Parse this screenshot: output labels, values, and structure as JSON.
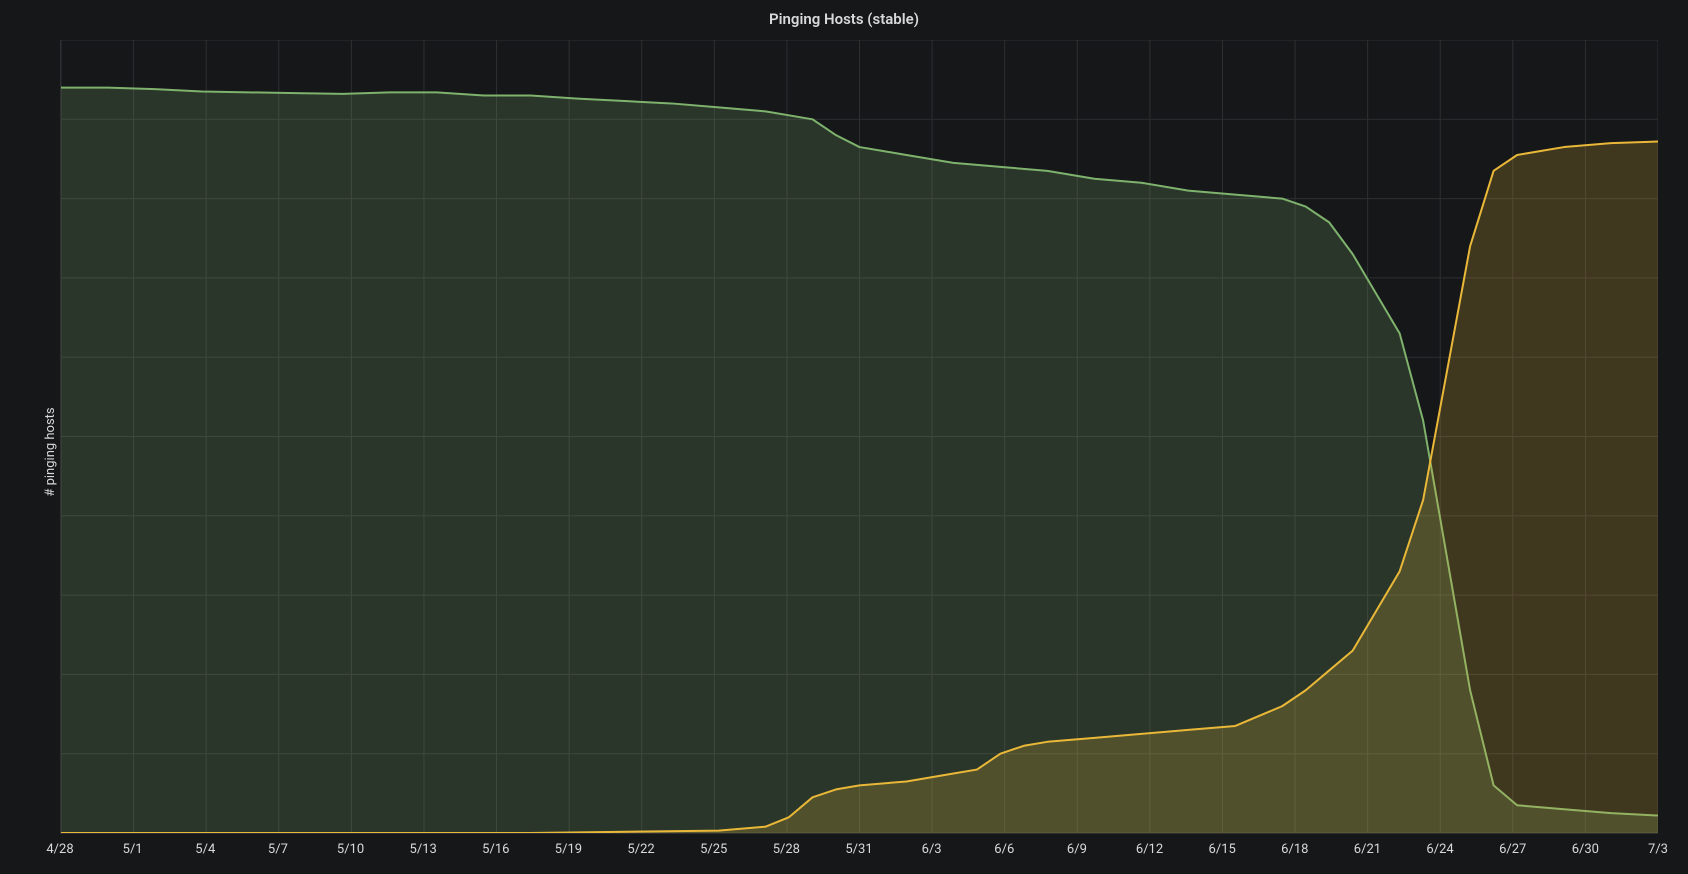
{
  "chart": {
    "type": "area",
    "title": "Pinging Hosts (stable)",
    "y_axis_title": "# pinging hosts",
    "background_color": "#161719",
    "grid_color": "#2f2f32",
    "title_color": "#d8d9da",
    "title_fontsize": 15,
    "label_color": "#d8d9da",
    "label_fontsize": 13,
    "x_ticks": [
      "4/28",
      "5/1",
      "5/4",
      "5/7",
      "5/10",
      "5/13",
      "5/16",
      "5/19",
      "5/22",
      "5/25",
      "5/28",
      "5/31",
      "6/3",
      "6/6",
      "6/9",
      "6/12",
      "6/15",
      "6/18",
      "6/21",
      "6/24",
      "6/27",
      "6/30",
      "7/3"
    ],
    "x_domain": [
      0,
      68
    ],
    "y_domain": [
      0,
      100
    ],
    "y_grid_count": 10,
    "series": [
      {
        "name": "green",
        "line_color": "#7eb26d",
        "fill_color": "rgba(126,178,109,0.20)",
        "line_width": 2,
        "points": [
          [
            0,
            94
          ],
          [
            2,
            94
          ],
          [
            4,
            93.8
          ],
          [
            6,
            93.5
          ],
          [
            8,
            93.4
          ],
          [
            10,
            93.3
          ],
          [
            12,
            93.2
          ],
          [
            14,
            93.4
          ],
          [
            16,
            93.4
          ],
          [
            18,
            93.0
          ],
          [
            20,
            93.0
          ],
          [
            22,
            92.6
          ],
          [
            24,
            92.3
          ],
          [
            26,
            92.0
          ],
          [
            28,
            91.5
          ],
          [
            30,
            91.0
          ],
          [
            32,
            90.0
          ],
          [
            33,
            88.0
          ],
          [
            34,
            86.5
          ],
          [
            35,
            86.0
          ],
          [
            36,
            85.5
          ],
          [
            38,
            84.5
          ],
          [
            40,
            84.0
          ],
          [
            42,
            83.5
          ],
          [
            44,
            82.5
          ],
          [
            46,
            82.0
          ],
          [
            48,
            81.0
          ],
          [
            50,
            80.5
          ],
          [
            52,
            80.0
          ],
          [
            53,
            79.0
          ],
          [
            54,
            77.0
          ],
          [
            55,
            73.0
          ],
          [
            56,
            68.0
          ],
          [
            57,
            63.0
          ],
          [
            58,
            52.0
          ],
          [
            59,
            35.0
          ],
          [
            60,
            18.0
          ],
          [
            61,
            6.0
          ],
          [
            62,
            3.5
          ],
          [
            64,
            3.0
          ],
          [
            66,
            2.5
          ],
          [
            68,
            2.2
          ]
        ]
      },
      {
        "name": "yellow",
        "line_color": "#eab839",
        "fill_color": "rgba(234,184,57,0.20)",
        "line_width": 2,
        "points": [
          [
            0,
            0
          ],
          [
            20,
            0
          ],
          [
            28,
            0.3
          ],
          [
            30,
            0.8
          ],
          [
            31,
            2.0
          ],
          [
            32,
            4.5
          ],
          [
            33,
            5.5
          ],
          [
            34,
            6.0
          ],
          [
            36,
            6.5
          ],
          [
            38,
            7.5
          ],
          [
            39,
            8.0
          ],
          [
            40,
            10.0
          ],
          [
            41,
            11.0
          ],
          [
            42,
            11.5
          ],
          [
            44,
            12.0
          ],
          [
            46,
            12.5
          ],
          [
            48,
            13.0
          ],
          [
            50,
            13.5
          ],
          [
            52,
            16.0
          ],
          [
            53,
            18.0
          ],
          [
            54,
            20.5
          ],
          [
            55,
            23.0
          ],
          [
            56,
            28.0
          ],
          [
            57,
            33.0
          ],
          [
            58,
            42.0
          ],
          [
            59,
            58.0
          ],
          [
            60,
            74.0
          ],
          [
            61,
            83.5
          ],
          [
            62,
            85.5
          ],
          [
            64,
            86.5
          ],
          [
            66,
            87.0
          ],
          [
            68,
            87.2
          ]
        ]
      }
    ]
  }
}
